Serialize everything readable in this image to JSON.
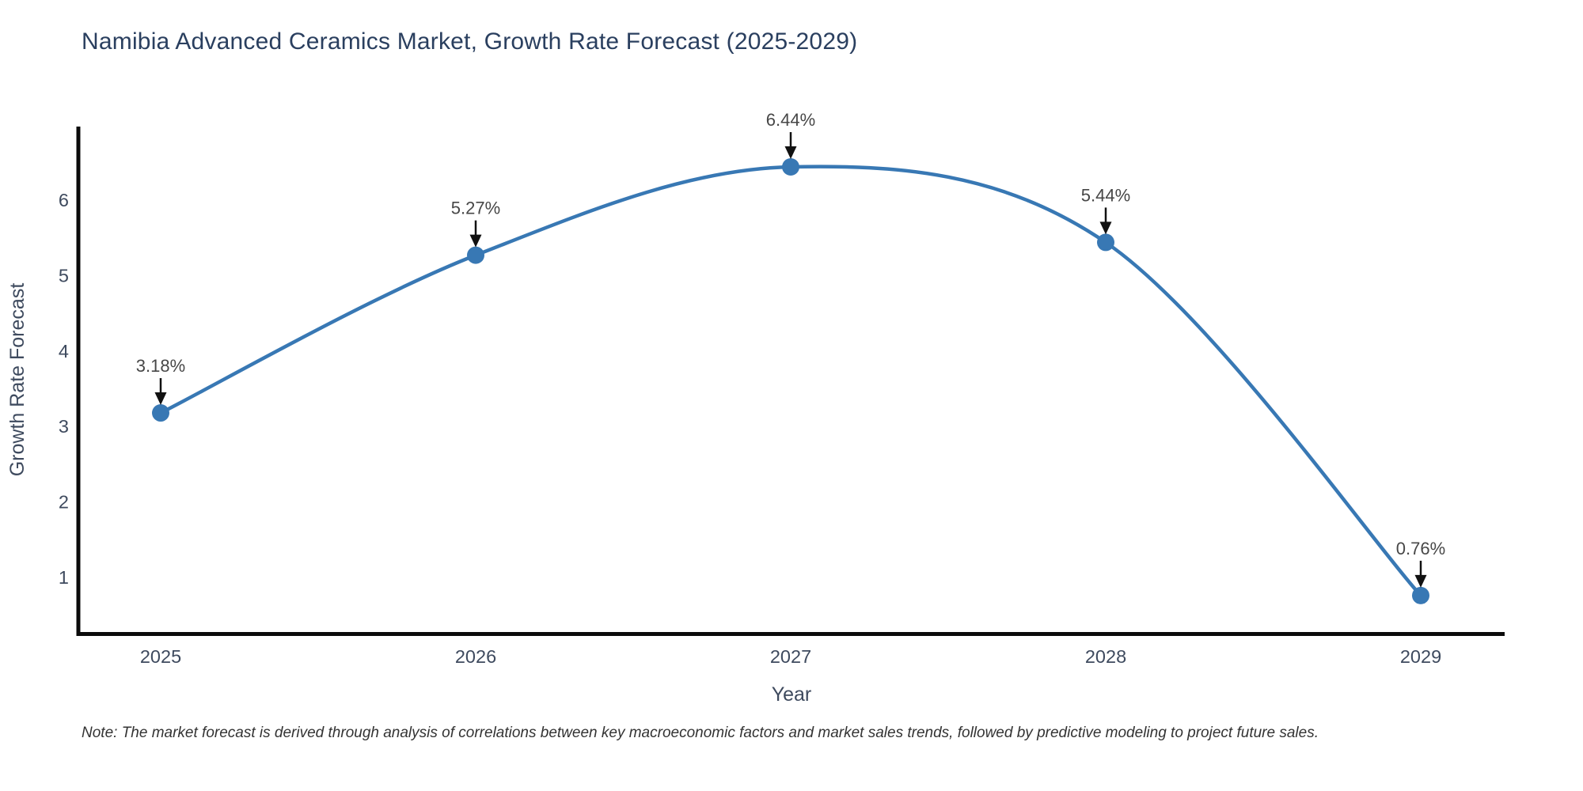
{
  "title": {
    "text": "Namibia Advanced Ceramics Market, Growth Rate Forecast (2025-2029)"
  },
  "note": {
    "text": "Note: The market forecast is derived through analysis of correlations between key macroeconomic factors and market sales trends, followed by predictive modeling to project future sales."
  },
  "chart_data": {
    "type": "line",
    "title": "Namibia Advanced Ceramics Market, Growth Rate Forecast (2025-2029)",
    "xlabel": "Year",
    "ylabel": "Growth Rate Forecast",
    "x": [
      2025,
      2026,
      2027,
      2028,
      2029
    ],
    "y": [
      3.18,
      5.27,
      6.44,
      5.44,
      0.76
    ],
    "point_labels": [
      "3.18%",
      "5.27%",
      "6.44%",
      "5.44%",
      "0.76%"
    ],
    "x_tick_labels": [
      "2025",
      "2026",
      "2027",
      "2028",
      "2029"
    ],
    "y_ticks": [
      1,
      2,
      3,
      4,
      5,
      6
    ],
    "ylim": [
      0.27,
      6.97
    ],
    "line_shape": "spline",
    "grid": false,
    "legend": false,
    "colors": {
      "line": "#3878b4",
      "marker": "#3878b4",
      "axis_line": "#0b0b0b",
      "annotation_arrow": "#111111",
      "annotation_text": "#474747",
      "title_text": "#2a3f5f",
      "tick_text": "#3e4a5e"
    }
  }
}
